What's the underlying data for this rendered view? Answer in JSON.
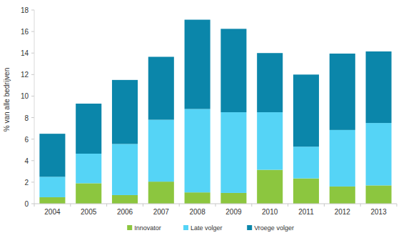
{
  "chart_data": {
    "type": "bar",
    "stacked": true,
    "grid": false,
    "legend": "bottom",
    "ylabel": "% van alle bedrijven",
    "categories": [
      "2004",
      "2005",
      "2006",
      "2007",
      "2008",
      "2009",
      "2010",
      "2011",
      "2012",
      "2013"
    ],
    "series": [
      {
        "name": "Innovator",
        "color": "#8cc63f",
        "values": [
          0.6,
          1.9,
          0.8,
          2.05,
          1.05,
          1.0,
          3.15,
          2.35,
          1.6,
          1.7
        ]
      },
      {
        "name": "Late volger",
        "color": "#55d4f6",
        "values": [
          1.9,
          2.75,
          4.75,
          5.75,
          7.75,
          7.5,
          5.35,
          2.95,
          5.25,
          5.8
        ]
      },
      {
        "name": "Vroege volger",
        "color": "#0b86aa",
        "values": [
          4.0,
          4.65,
          5.95,
          5.85,
          8.3,
          7.75,
          5.5,
          6.7,
          7.1,
          6.65
        ]
      }
    ],
    "ylim": [
      0,
      18
    ],
    "yticks": [
      0,
      2,
      4,
      6,
      8,
      10,
      12,
      14,
      16,
      18
    ]
  }
}
